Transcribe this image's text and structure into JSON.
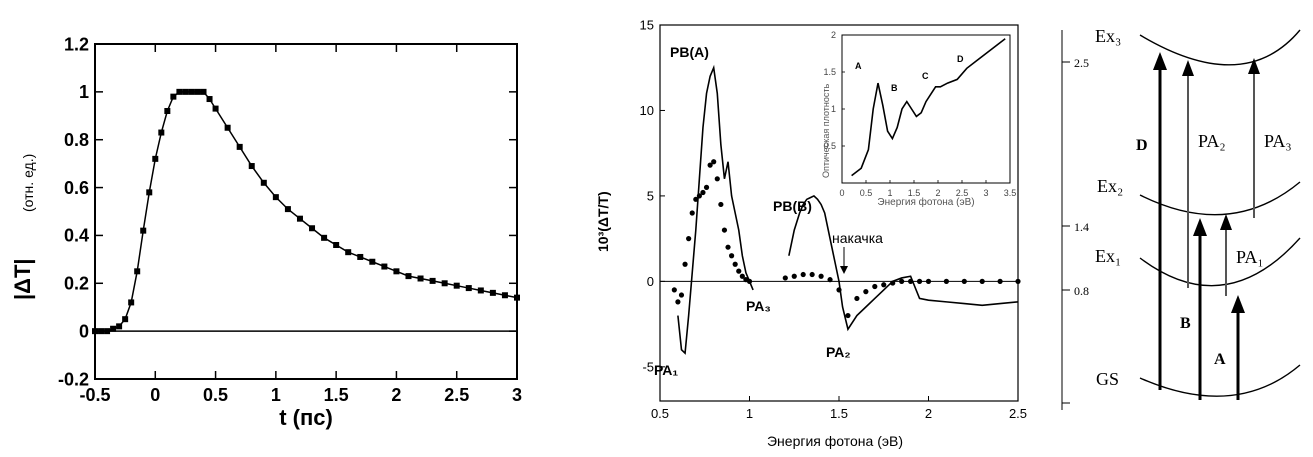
{
  "chart_data": [
    {
      "type": "line",
      "title": "",
      "xlabel": "t (пс)",
      "ylabel": "|ΔT|",
      "ylabel_unit": "(отн. ед.)",
      "xlim": [
        -0.5,
        3
      ],
      "ylim": [
        -0.2,
        1.2
      ],
      "xticks": [
        "-0.5",
        "0",
        "0.5",
        "1",
        "1.5",
        "2",
        "2.5",
        "3"
      ],
      "yticks": [
        "-0.2",
        "0",
        "0.2",
        "0.4",
        "0.6",
        "0.8",
        "1",
        "1.2"
      ],
      "grid": false,
      "series": [
        {
          "x": [
            -0.5,
            -0.45,
            -0.4,
            -0.35,
            -0.3,
            -0.25,
            -0.2,
            -0.15,
            -0.1,
            -0.05,
            0,
            0.05,
            0.1,
            0.15,
            0.2,
            0.25,
            0.3,
            0.35,
            0.4,
            0.45,
            0.5,
            0.6,
            0.7,
            0.8,
            0.9,
            1,
            1.1,
            1.2,
            1.3,
            1.4,
            1.5,
            1.6,
            1.7,
            1.8,
            1.9,
            2,
            2.1,
            2.2,
            2.3,
            2.4,
            2.5,
            2.6,
            2.7,
            2.8,
            2.9,
            3
          ],
          "y": [
            0.0,
            0.0,
            0.0,
            0.01,
            0.02,
            0.05,
            0.12,
            0.25,
            0.42,
            0.58,
            0.72,
            0.83,
            0.92,
            0.98,
            1.0,
            1.0,
            1.0,
            1.0,
            1.0,
            0.97,
            0.93,
            0.85,
            0.77,
            0.69,
            0.62,
            0.56,
            0.51,
            0.47,
            0.43,
            0.39,
            0.36,
            0.33,
            0.31,
            0.29,
            0.27,
            0.25,
            0.23,
            0.22,
            0.21,
            0.2,
            0.19,
            0.18,
            0.17,
            0.16,
            0.15,
            0.14
          ]
        }
      ]
    },
    {
      "type": "line",
      "title": "",
      "xlabel": "Энергия фотона (эВ)",
      "ylabel": "10³(ΔT/T)",
      "xlim": [
        0.5,
        2.5
      ],
      "ylim": [
        -7,
        15
      ],
      "xticks": [
        "0.5",
        "1",
        "1.5",
        "2",
        "2.5"
      ],
      "yticks": [
        "-5",
        "0",
        "5",
        "10",
        "15"
      ],
      "annotations": [
        "PB(A)",
        "PB(B)",
        "PA₁",
        "PA₃",
        "PA₂",
        "накачка"
      ],
      "series": [
        {
          "style": "solid",
          "x": [
            0.6,
            0.62,
            0.64,
            0.66,
            0.68,
            0.7,
            0.72,
            0.74,
            0.76,
            0.78,
            0.8,
            0.82,
            0.84,
            0.86,
            0.88,
            0.9,
            0.92,
            0.94,
            0.96,
            0.98,
            1.0,
            1.02
          ],
          "y": [
            -2,
            -4,
            -4.2,
            -2,
            0.5,
            3,
            6,
            9,
            11,
            12,
            12.5,
            11,
            8,
            6,
            7,
            5,
            4,
            3,
            1.5,
            0.5,
            0,
            -0.5
          ]
        },
        {
          "style": "solid",
          "x": [
            1.22,
            1.25,
            1.28,
            1.3,
            1.32,
            1.34,
            1.36,
            1.38,
            1.4,
            1.42,
            1.44,
            1.46,
            1.48,
            1.5,
            1.52,
            1.55,
            1.6,
            1.65,
            1.7,
            1.75,
            1.8,
            1.85,
            1.9,
            1.95,
            2.0,
            2.1,
            2.2,
            2.3,
            2.4,
            2.5
          ],
          "y": [
            1.5,
            3,
            4,
            4.5,
            4.8,
            4.9,
            5,
            4.8,
            4.5,
            4,
            3,
            2,
            1,
            0,
            -1.5,
            -2.8,
            -2,
            -1.5,
            -1,
            -0.5,
            0,
            0.2,
            0.3,
            -1,
            -1.1,
            -1.2,
            -1.3,
            -1.4,
            -1.3,
            -1.2
          ]
        },
        {
          "style": "dots",
          "x": [
            0.58,
            0.6,
            0.62,
            0.64,
            0.66,
            0.68,
            0.7,
            0.72,
            0.74,
            0.76,
            0.78,
            0.8,
            0.82,
            0.84,
            0.86,
            0.88,
            0.9,
            0.92,
            0.94,
            0.96,
            0.98,
            1.0,
            1.2,
            1.25,
            1.3,
            1.35,
            1.4,
            1.45,
            1.5,
            1.55,
            1.6,
            1.65,
            1.7,
            1.75,
            1.8,
            1.85,
            1.9,
            1.95,
            2.0,
            2.1,
            2.2,
            2.3,
            2.4,
            2.5
          ],
          "y": [
            -0.5,
            -1.2,
            -0.8,
            1,
            2.5,
            4,
            4.8,
            5,
            5.2,
            5.5,
            6.8,
            7,
            6,
            4.5,
            3,
            2,
            1.5,
            1,
            0.6,
            0.3,
            0.1,
            0,
            0.2,
            0.3,
            0.4,
            0.4,
            0.3,
            0.1,
            -0.5,
            -2,
            -1,
            -0.6,
            -0.3,
            -0.2,
            -0.1,
            0,
            0,
            0,
            0,
            0,
            0,
            0,
            0,
            0
          ]
        }
      ]
    },
    {
      "type": "line",
      "title": "",
      "xlabel": "Энергия фотона (эВ)",
      "ylabel": "Оптическая плотность",
      "xlim": [
        0,
        3.5
      ],
      "ylim": [
        0,
        2
      ],
      "xticks": [
        "0",
        "0.5",
        "1",
        "1.5",
        "2",
        "2.5",
        "3",
        "3.5"
      ],
      "yticks": [
        "0.5",
        "1",
        "1.5",
        "2"
      ],
      "annotations": [
        "A",
        "B",
        "C",
        "D"
      ],
      "series": [
        {
          "x": [
            0.2,
            0.4,
            0.55,
            0.65,
            0.75,
            0.85,
            0.95,
            1.05,
            1.15,
            1.25,
            1.35,
            1.45,
            1.55,
            1.65,
            1.75,
            1.85,
            1.95,
            2.05,
            2.2,
            2.4,
            2.6,
            2.8,
            3.0,
            3.2,
            3.4
          ],
          "y": [
            0.1,
            0.2,
            0.45,
            1.0,
            1.35,
            1.05,
            0.7,
            0.6,
            0.75,
            1.0,
            1.1,
            1.0,
            0.9,
            0.95,
            1.1,
            1.2,
            1.3,
            1.3,
            1.35,
            1.4,
            1.55,
            1.65,
            1.75,
            1.85,
            1.95
          ]
        }
      ]
    }
  ],
  "diagram": {
    "level_labels": [
      "Ex₃",
      "Ex₂",
      "Ex₁",
      "GS"
    ],
    "axis_values": [
      "2.5",
      "1.4",
      "0.8"
    ],
    "transitions": [
      "D",
      "PA₂",
      "PA₃",
      "PA₁",
      "B",
      "A"
    ]
  }
}
